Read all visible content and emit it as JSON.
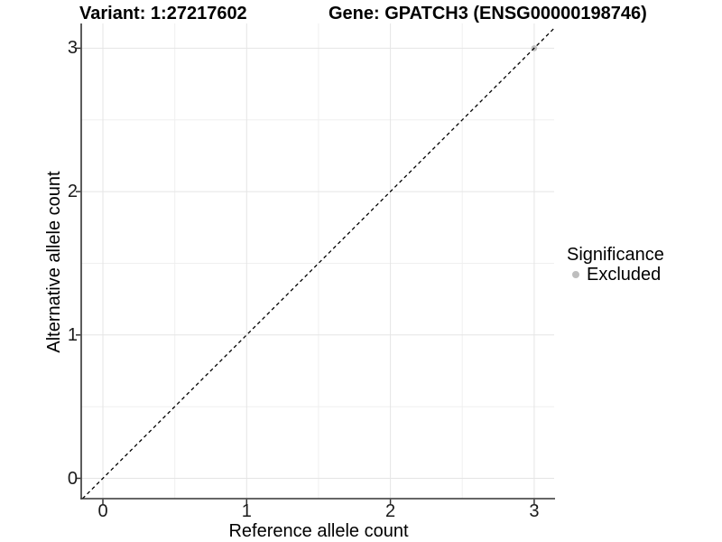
{
  "chart_data": {
    "type": "scatter",
    "title_left": "Variant: 1:27217602",
    "title_right": "Gene: GPATCH3 (ENSG00000198746)",
    "xlabel": "Reference allele count",
    "ylabel": "Alternative allele count",
    "x_ticks": [
      "0",
      "1",
      "2",
      "3"
    ],
    "y_ticks": [
      "0",
      "1",
      "2",
      "3"
    ],
    "xlim": [
      -0.15,
      3.15
    ],
    "ylim": [
      -0.15,
      3.15
    ],
    "grid": "major gridlines at integers, minor gridlines at 0.5 steps, light gray on white panel",
    "points": [
      {
        "x": 3,
        "y": 3,
        "series": "Excluded"
      }
    ],
    "point_radius_px": 3.3,
    "reference_line": {
      "slope": 1,
      "intercept": 0,
      "style": "dashed",
      "color": "#000000"
    },
    "legend": {
      "title": "Significance",
      "position": "right",
      "entries": [
        {
          "label": "Excluded",
          "color": "#bebebe"
        }
      ]
    },
    "colors": {
      "excluded_point": "#bebebe",
      "major_grid": "#e5e5e5",
      "minor_grid": "#efefef",
      "axis_line": "#333333",
      "tick_mark": "#333333",
      "text": "#000000"
    }
  }
}
